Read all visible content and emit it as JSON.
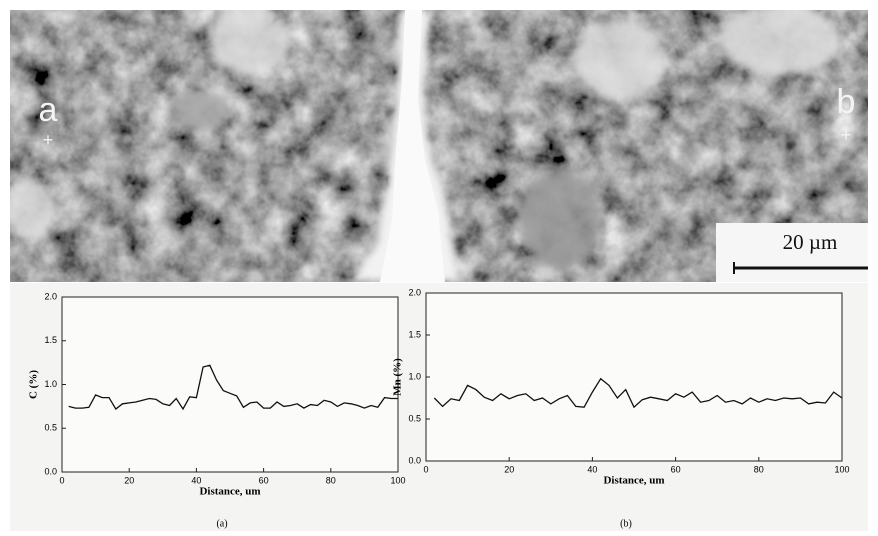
{
  "micrograph": {
    "label_a": "a",
    "label_b": "b",
    "scale": "20 µm"
  },
  "chart_data": [
    {
      "type": "line",
      "caption": "(a)",
      "x_label": "Distance, um",
      "y_label": "C (%)",
      "color": "#111111",
      "x": [
        2,
        4,
        6,
        8,
        10,
        12,
        14,
        16,
        18,
        20,
        22,
        24,
        26,
        28,
        30,
        32,
        34,
        36,
        38,
        40,
        42,
        44,
        46,
        48,
        50,
        52,
        54,
        56,
        58,
        60,
        62,
        64,
        66,
        68,
        70,
        72,
        74,
        76,
        78,
        80,
        82,
        84,
        86,
        88,
        90,
        92,
        94,
        96,
        98,
        100
      ],
      "values": [
        0.75,
        0.73,
        0.73,
        0.74,
        0.88,
        0.85,
        0.85,
        0.72,
        0.78,
        0.79,
        0.8,
        0.82,
        0.84,
        0.83,
        0.78,
        0.76,
        0.84,
        0.72,
        0.86,
        0.85,
        1.2,
        1.22,
        1.05,
        0.93,
        0.9,
        0.87,
        0.74,
        0.79,
        0.8,
        0.73,
        0.73,
        0.8,
        0.75,
        0.76,
        0.78,
        0.73,
        0.77,
        0.76,
        0.82,
        0.8,
        0.75,
        0.79,
        0.78,
        0.76,
        0.73,
        0.76,
        0.74,
        0.85,
        0.84,
        0.84
      ],
      "xlim": [
        0,
        100
      ],
      "xticks": [
        0,
        20,
        40,
        60,
        80,
        100
      ],
      "ylim": [
        0,
        2
      ],
      "yticks": [
        {
          "value": 0,
          "label": "0.0"
        },
        {
          "value": 0.5,
          "label": "0.5"
        },
        {
          "value": 1,
          "label": "1.0"
        },
        {
          "value": 1.5,
          "label": "1.5"
        },
        {
          "value": 2,
          "label": "2.0"
        }
      ]
    },
    {
      "type": "line",
      "caption": "(b)",
      "x_label": "Distance, um",
      "y_label": "Mn (%)",
      "color": "#111111",
      "x": [
        2,
        4,
        6,
        8,
        10,
        12,
        14,
        16,
        18,
        20,
        22,
        24,
        26,
        28,
        30,
        32,
        34,
        36,
        38,
        40,
        42,
        44,
        46,
        48,
        50,
        52,
        54,
        56,
        58,
        60,
        62,
        64,
        66,
        68,
        70,
        72,
        74,
        76,
        78,
        80,
        82,
        84,
        86,
        88,
        90,
        92,
        94,
        96,
        98,
        100
      ],
      "values": [
        0.75,
        0.65,
        0.74,
        0.72,
        0.9,
        0.85,
        0.76,
        0.72,
        0.8,
        0.74,
        0.78,
        0.8,
        0.72,
        0.75,
        0.68,
        0.74,
        0.78,
        0.65,
        0.64,
        0.82,
        0.98,
        0.9,
        0.75,
        0.85,
        0.64,
        0.73,
        0.76,
        0.74,
        0.72,
        0.8,
        0.76,
        0.82,
        0.7,
        0.72,
        0.78,
        0.7,
        0.72,
        0.68,
        0.75,
        0.7,
        0.74,
        0.72,
        0.75,
        0.74,
        0.75,
        0.68,
        0.7,
        0.69,
        0.82,
        0.75
      ],
      "xlim": [
        0,
        100
      ],
      "xticks": [
        0,
        20,
        40,
        60,
        80,
        100
      ],
      "ylim": [
        0,
        2
      ],
      "yticks": [
        {
          "value": 0,
          "label": "0.0"
        },
        {
          "value": 0.5,
          "label": "0.5"
        },
        {
          "value": 1,
          "label": "1.0"
        },
        {
          "value": 1.5,
          "label": "1.5"
        },
        {
          "value": 2,
          "label": "2.0"
        }
      ]
    }
  ]
}
